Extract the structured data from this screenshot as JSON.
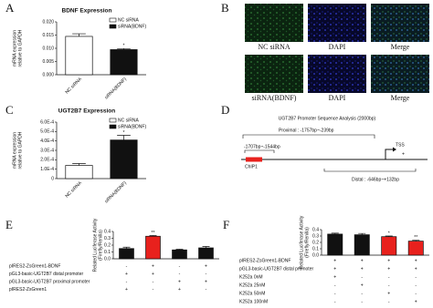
{
  "chart_data": [
    {
      "type": "bar",
      "panel": "A",
      "title": "BDNF Expression",
      "ylabel": [
        "mRNA expression",
        "relative to GAPDH"
      ],
      "categories": [
        "NC siRNA",
        "siRNA(BDNF)"
      ],
      "values": [
        0.0145,
        0.0095
      ],
      "errors": [
        0.001,
        0.0004
      ],
      "colors": [
        "#ffffff",
        "#111111"
      ],
      "bar_labels": [
        null,
        "*"
      ],
      "legend": [
        {
          "name": "NC siRNA",
          "color": "#ffffff"
        },
        {
          "name": "siRNA(BDNF)",
          "color": "#111111"
        }
      ],
      "ylim": [
        0,
        0.02
      ],
      "yticks": [
        {
          "value": 0,
          "label": "0.000"
        },
        {
          "value": 0.005,
          "label": "0.005"
        },
        {
          "value": 0.01,
          "label": "0.010"
        },
        {
          "value": 0.015,
          "label": "0.015"
        },
        {
          "value": 0.02,
          "label": "0.020"
        }
      ]
    },
    {
      "type": "bar",
      "panel": "C",
      "title": "UGT2B7 Expression",
      "ylabel": [
        "mRNA expression",
        "relative to GAPDH"
      ],
      "categories": [
        "NC siRNA",
        "siRNA(BDNF)"
      ],
      "values": [
        0.00014,
        0.00041
      ],
      "errors": [
        2e-05,
        5e-05
      ],
      "colors": [
        "#ffffff",
        "#111111"
      ],
      "bar_labels": [
        null,
        "*"
      ],
      "legend": [
        {
          "name": "NC siRNA",
          "color": "#ffffff"
        },
        {
          "name": "siRNA(BDNF)",
          "color": "#111111"
        }
      ],
      "ylim": [
        0,
        0.0006
      ],
      "yticks": [
        0,
        {
          "value": 0.0001,
          "label": "1.0E-4"
        },
        {
          "value": 0.0002,
          "label": "2.0E-4"
        },
        {
          "value": 0.0003,
          "label": "3.0E-4"
        },
        {
          "value": 0.0004,
          "label": "4.0E-4"
        },
        {
          "value": 0.0005,
          "label": "5.0E-4"
        },
        {
          "value": 0.0006,
          "label": "6.0E-4"
        }
      ]
    },
    {
      "type": "bar",
      "panel": "E",
      "ylabel": [
        "Related Luciferase Activity",
        "(Firefly/Renilla)"
      ],
      "values": [
        0.15,
        0.33,
        0.13,
        0.16
      ],
      "errors": [
        0.02,
        0.01,
        0.01,
        0.02
      ],
      "colors": [
        "#111111",
        "#e8211d",
        "#111111",
        "#111111"
      ],
      "bar_labels": [
        null,
        "**",
        null,
        null
      ],
      "ylim": [
        0,
        0.4
      ],
      "yticks": [
        {
          "value": 0,
          "label": "0.0"
        },
        0.1,
        0.2,
        0.3,
        0.4
      ],
      "conditions": [
        {
          "label": "pIRES2-ZsGreen1-BDNF",
          "marks": [
            "-",
            "+",
            "-",
            "+"
          ]
        },
        {
          "label": "pGL3-basic-UGT2B7 distal promoter",
          "marks": [
            "+",
            "+",
            "-",
            "-"
          ]
        },
        {
          "label": "pGL3-basic-UGT2B7 proximal promoter",
          "marks": [
            "-",
            "-",
            "+",
            "+"
          ]
        },
        {
          "label": "pIRES2-ZsGreen1",
          "marks": [
            "+",
            "-",
            "+",
            "-"
          ]
        }
      ]
    },
    {
      "type": "bar",
      "panel": "F",
      "ylabel": [
        "Related Luciferase Activity",
        "(Firefly/Renilla)"
      ],
      "values": [
        0.33,
        0.32,
        0.29,
        0.22
      ],
      "errors": [
        0.015,
        0.02,
        0.01,
        0.012
      ],
      "colors": [
        "#111111",
        "#111111",
        "#e8211d",
        "#e8211d"
      ],
      "bar_labels": [
        null,
        null,
        "*",
        "**"
      ],
      "ylim": [
        0,
        0.4
      ],
      "yticks": [
        {
          "value": 0,
          "label": "0.0"
        },
        0.1,
        0.2,
        0.3,
        0.4
      ],
      "conditions": [
        {
          "label": "pIRES2-ZsGreen1-BDNF",
          "marks": [
            "+",
            "+",
            "+",
            "+"
          ]
        },
        {
          "label": "pGL3-basic-UGT2B7 distal promoter",
          "marks": [
            "+",
            "+",
            "+",
            "+"
          ]
        },
        {
          "label": "K252a 0nM",
          "marks": [
            "+",
            "-",
            "-",
            "-"
          ]
        },
        {
          "label": "K252a 25nM",
          "marks": [
            "-",
            "+",
            "-",
            "-"
          ]
        },
        {
          "label": "K252a 50nM",
          "marks": [
            "-",
            "-",
            "+",
            "-"
          ]
        },
        {
          "label": "K252a 100nM",
          "marks": [
            "-",
            "-",
            "-",
            "+"
          ]
        }
      ]
    }
  ],
  "panel_b": {
    "label": "B",
    "captions": [
      "NC siRNA",
      "DAPI",
      "Merge",
      "siRNA(BDNF)",
      "DAPI",
      "Merge"
    ]
  },
  "panel_d": {
    "label": "D",
    "title": "UGT2B7 Promoter Sequence Analysis (2000bp)",
    "proximal": "Proximal : -1757bp~-239bp",
    "chip_range": "-1707bp~-1544bp",
    "chip": "ChIP1",
    "tss": "TSS",
    "plus": "+",
    "distal": "Distal : -646bp~+132bp"
  }
}
